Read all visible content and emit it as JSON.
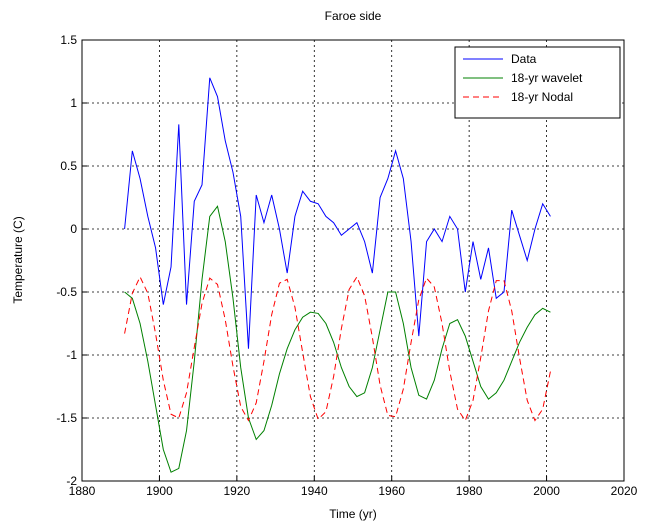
{
  "chart_data": {
    "type": "line",
    "title": "Faroe side",
    "x_label": "Time (yr)",
    "y_label": "Temperature (C)",
    "x": [
      1891,
      1893,
      1895,
      1897,
      1899,
      1901,
      1903,
      1905,
      1907,
      1909,
      1911,
      1913,
      1915,
      1917,
      1919,
      1921,
      1923,
      1925,
      1927,
      1929,
      1931,
      1933,
      1935,
      1937,
      1939,
      1941,
      1943,
      1945,
      1947,
      1949,
      1951,
      1953,
      1955,
      1957,
      1959,
      1961,
      1963,
      1965,
      1967,
      1969,
      1971,
      1973,
      1975,
      1977,
      1979,
      1981,
      1983,
      1985,
      1987,
      1989,
      1991,
      1993,
      1995,
      1997,
      1999,
      2001
    ],
    "series": [
      {
        "name": "Data",
        "color": "#0000ff",
        "line_style": "solid",
        "values": [
          0,
          0.62,
          0.4,
          0.1,
          -0.15,
          -0.6,
          -0.3,
          0.83,
          -0.6,
          0.22,
          0.35,
          1.2,
          1.05,
          0.7,
          0.45,
          0.1,
          -0.95,
          0.27,
          0.05,
          0.27,
          0,
          -0.35,
          0.1,
          0.3,
          0.22,
          0.2,
          0.1,
          0.05,
          -0.05,
          0,
          0.05,
          -0.1,
          -0.35,
          0.25,
          0.4,
          0.62,
          0.4,
          -0.1,
          -0.85,
          -0.1,
          0,
          -0.1,
          0.1,
          0,
          -0.5,
          -0.1,
          -0.4,
          -0.15,
          -0.55,
          -0.5,
          0.15,
          -0.05,
          -0.25,
          0,
          0.2,
          0.1
        ]
      },
      {
        "name": "18-yr wavelet",
        "color": "#008000",
        "line_style": "solid",
        "values": [
          -0.5,
          -0.55,
          -0.75,
          -1.05,
          -1.4,
          -1.75,
          -1.93,
          -1.9,
          -1.6,
          -1.05,
          -0.4,
          0.1,
          0.18,
          -0.1,
          -0.55,
          -1.1,
          -1.5,
          -1.67,
          -1.6,
          -1.4,
          -1.15,
          -0.95,
          -0.8,
          -0.7,
          -0.66,
          -0.67,
          -0.75,
          -0.9,
          -1.1,
          -1.25,
          -1.33,
          -1.3,
          -1.1,
          -0.8,
          -0.5,
          -0.5,
          -0.75,
          -1.1,
          -1.32,
          -1.35,
          -1.2,
          -0.95,
          -0.75,
          -0.72,
          -0.85,
          -1.05,
          -1.25,
          -1.35,
          -1.3,
          -1.2,
          -1.05,
          -0.9,
          -0.78,
          -0.68,
          -0.63,
          -0.66
        ]
      },
      {
        "name": "18-yr Nodal",
        "color": "#ff0000",
        "line_style": "dashed",
        "values": [
          -0.83,
          -0.51,
          -0.38,
          -0.51,
          -0.83,
          -1.2,
          -1.47,
          -1.5,
          -1.3,
          -0.94,
          -0.59,
          -0.39,
          -0.44,
          -0.72,
          -1.09,
          -1.41,
          -1.52,
          -1.38,
          -1.05,
          -0.68,
          -0.43,
          -0.4,
          -0.62,
          -0.98,
          -1.33,
          -1.51,
          -1.45,
          -1.17,
          -0.79,
          -0.48,
          -0.38,
          -0.53,
          -0.86,
          -1.24,
          -1.48,
          -1.49,
          -1.27,
          -0.9,
          -0.56,
          -0.39,
          -0.46,
          -0.75,
          -1.13,
          -1.43,
          -1.52,
          -1.36,
          -1.02,
          -0.65,
          -0.41,
          -0.41,
          -0.65,
          -1.02,
          -1.36,
          -1.52,
          -1.43,
          -1.13
        ]
      }
    ],
    "xlim": [
      1880,
      2020
    ],
    "xticks": [
      1880,
      1900,
      1920,
      1940,
      1960,
      1980,
      2000,
      2020
    ],
    "ylim": [
      -2,
      1.5
    ],
    "yticks": [
      -2,
      -1.5,
      -1,
      -0.5,
      0,
      0.5,
      1,
      1.5
    ],
    "grid": true,
    "legend": "upper right"
  }
}
